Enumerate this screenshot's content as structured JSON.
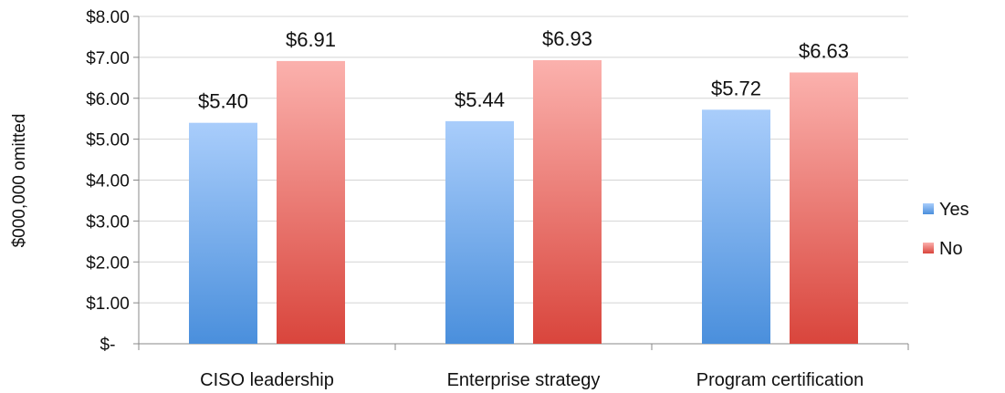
{
  "chart_data": {
    "type": "bar",
    "title": "",
    "xlabel": "",
    "ylabel": "$000,000 omitted",
    "categories": [
      "CISO leadership",
      "Enterprise strategy",
      "Program certification"
    ],
    "series": [
      {
        "name": "Yes",
        "values": [
          5.4,
          5.44,
          5.72
        ],
        "data_labels": [
          "$5.40",
          "$5.44",
          "$5.72"
        ],
        "color_top": "#a9cdfb",
        "color_bottom": "#4a8fdc"
      },
      {
        "name": "No",
        "values": [
          6.91,
          6.93,
          6.63
        ],
        "data_labels": [
          "$6.91",
          "$6.93",
          "$6.63"
        ],
        "color_top": "#fbb1ad",
        "color_bottom": "#d9453c"
      }
    ],
    "ylim": [
      0,
      8
    ],
    "yticks": [
      0,
      1,
      2,
      3,
      4,
      5,
      6,
      7,
      8
    ],
    "ytick_labels": [
      "$-",
      "$1.00",
      "$2.00",
      "$3.00",
      "$4.00",
      "$5.00",
      "$6.00",
      "$7.00",
      "$8.00"
    ],
    "grid": true,
    "legend_position": "right"
  }
}
